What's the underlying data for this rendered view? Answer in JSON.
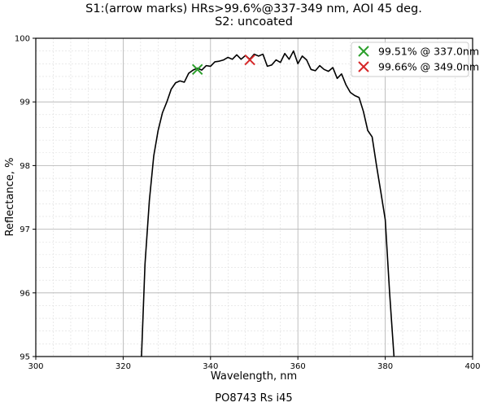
{
  "chart_data": {
    "type": "line",
    "title_lines": [
      "S1:(arrow marks) HRs>99.6%@337-349 nm, AOI 45 deg.",
      "S2: uncoated"
    ],
    "xlabel": "Wavelength, nm",
    "ylabel": "Reflectance, %",
    "footer": "PO8743 Rs i45",
    "xlim": [
      300,
      400
    ],
    "ylim": [
      95,
      100
    ],
    "x_ticks": [
      "300",
      "320",
      "340",
      "360",
      "380",
      "400"
    ],
    "y_ticks": [
      "95",
      "96",
      "97",
      "98",
      "99",
      "100"
    ],
    "grid": "major and minor",
    "legend_position": "top-right",
    "series": [
      {
        "color": "#000000",
        "x": [
          324.2,
          325.0,
          326.0,
          327.0,
          328.0,
          329.0,
          330.0,
          331.0,
          332.0,
          333.0,
          334.0,
          335.0,
          336.0,
          337.0,
          338.0,
          339.0,
          340.0,
          341.0,
          342.0,
          343.0,
          344.0,
          345.0,
          346.0,
          347.0,
          348.0,
          349.0,
          350.0,
          351.0,
          352.0,
          353.0,
          354.0,
          355.0,
          356.0,
          357.0,
          358.0,
          359.0,
          360.0,
          361.0,
          362.0,
          363.0,
          364.0,
          365.0,
          366.0,
          367.0,
          368.0,
          369.0,
          370.0,
          371.0,
          372.0,
          373.0,
          374.0,
          375.0,
          376.0,
          377.0,
          378.0,
          379.0,
          380.0,
          381.0,
          382.0
        ],
        "y": [
          95.0,
          96.45,
          97.45,
          98.15,
          98.55,
          98.83,
          99.0,
          99.2,
          99.3,
          99.33,
          99.31,
          99.45,
          99.5,
          99.53,
          99.5,
          99.57,
          99.56,
          99.63,
          99.64,
          99.66,
          99.7,
          99.67,
          99.74,
          99.67,
          99.73,
          99.67,
          99.75,
          99.72,
          99.75,
          99.56,
          99.58,
          99.66,
          99.62,
          99.76,
          99.67,
          99.8,
          99.6,
          99.72,
          99.66,
          99.51,
          99.49,
          99.57,
          99.51,
          99.48,
          99.54,
          99.37,
          99.44,
          99.27,
          99.15,
          99.1,
          99.07,
          98.85,
          98.55,
          98.45,
          98.0,
          97.58,
          97.15,
          96.0,
          95.0
        ]
      }
    ],
    "markers": [
      {
        "label": "99.51% @ 337.0nm",
        "x": 337.0,
        "y": 99.51,
        "color": "#2ca02c"
      },
      {
        "label": "99.66% @ 349.0nm",
        "x": 349.0,
        "y": 99.66,
        "color": "#d62728"
      }
    ]
  }
}
